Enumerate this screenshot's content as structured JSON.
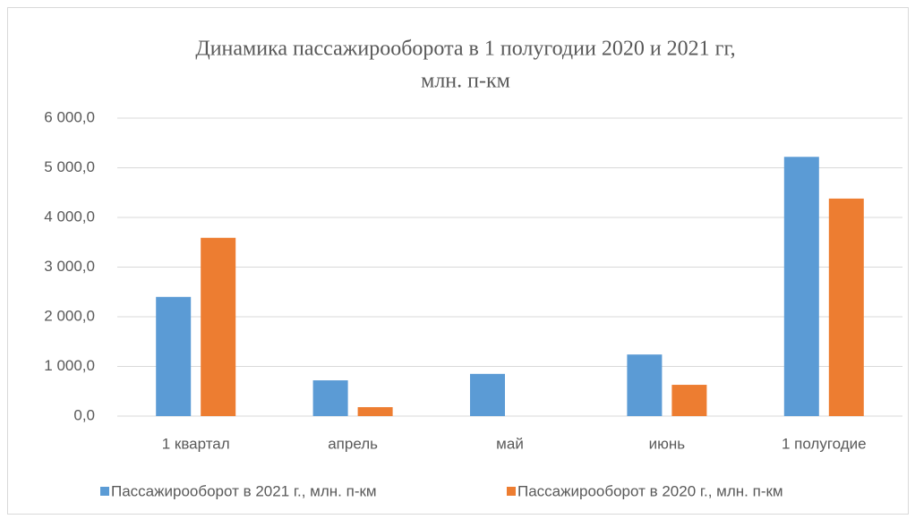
{
  "chart_data": {
    "type": "bar",
    "title": [
      "Динамика пассажирооборота в 1 полугодии 2020 и 2021 гг,",
      "млн. п-км"
    ],
    "categories": [
      "1 квартал",
      "апрель",
      "май",
      "июнь",
      "1 полугодие"
    ],
    "series": [
      {
        "name": "Пассажирооборот в 2021 г., млн. п-км",
        "color": "#5b9bd5",
        "values": [
          2400,
          720,
          850,
          1240,
          5220
        ]
      },
      {
        "name": "Пассажирооборот в 2020 г., млн. п-км",
        "color": "#ed7d31",
        "values": [
          3590,
          180,
          0,
          630,
          4380
        ]
      }
    ],
    "ylim": [
      0,
      6000
    ],
    "yticks": [
      {
        "value": 0,
        "label": "0,0"
      },
      {
        "value": 1000,
        "label": "1 000,0"
      },
      {
        "value": 2000,
        "label": "2 000,0"
      },
      {
        "value": 3000,
        "label": "3 000,0"
      },
      {
        "value": 4000,
        "label": "4 000,0"
      },
      {
        "value": 5000,
        "label": "5 000,0"
      },
      {
        "value": 6000,
        "label": "6 000,0"
      }
    ],
    "grid": true,
    "legend": "bottom"
  }
}
